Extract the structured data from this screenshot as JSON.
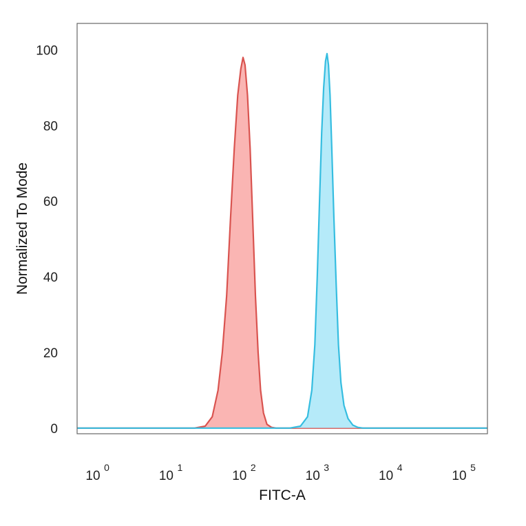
{
  "chart_data": {
    "type": "area",
    "title": "",
    "xlabel": "FITC-A",
    "ylabel": "Normalized To Mode",
    "xscale": "log",
    "xlim": [
      0.5,
      200000
    ],
    "ylim": [
      -1.5,
      107
    ],
    "grid": false,
    "legend": "none",
    "x_ticks": [
      {
        "base": "10",
        "exp": "0",
        "value": 1
      },
      {
        "base": "10",
        "exp": "1",
        "value": 10
      },
      {
        "base": "10",
        "exp": "2",
        "value": 100
      },
      {
        "base": "10",
        "exp": "3",
        "value": 1000
      },
      {
        "base": "10",
        "exp": "4",
        "value": 10000
      },
      {
        "base": "10",
        "exp": "5",
        "value": 100000
      }
    ],
    "y_ticks": [
      {
        "label": "0",
        "value": 0
      },
      {
        "label": "20",
        "value": 20
      },
      {
        "label": "40",
        "value": 40
      },
      {
        "label": "60",
        "value": 60
      },
      {
        "label": "80",
        "value": 80
      },
      {
        "label": "100",
        "value": 100
      }
    ],
    "series": [
      {
        "color": "#d9534f",
        "fill": "#f9a8a6",
        "points": [
          [
            0.5,
            0
          ],
          [
            20,
            0
          ],
          [
            28,
            0.5
          ],
          [
            35,
            3
          ],
          [
            42,
            10
          ],
          [
            48,
            20
          ],
          [
            55,
            35
          ],
          [
            62,
            55
          ],
          [
            70,
            74
          ],
          [
            78,
            88
          ],
          [
            86,
            95
          ],
          [
            92,
            98
          ],
          [
            98,
            96
          ],
          [
            106,
            88
          ],
          [
            115,
            74
          ],
          [
            125,
            55
          ],
          [
            136,
            35
          ],
          [
            148,
            20
          ],
          [
            160,
            10
          ],
          [
            175,
            4
          ],
          [
            195,
            1
          ],
          [
            225,
            0.2
          ],
          [
            260,
            0
          ],
          [
            400,
            0
          ],
          [
            2000,
            0
          ],
          [
            200000,
            0
          ]
        ]
      },
      {
        "color": "#35bde0",
        "fill": "#a8e6f8",
        "points": [
          [
            0.5,
            0
          ],
          [
            400,
            0
          ],
          [
            560,
            0.5
          ],
          [
            700,
            3
          ],
          [
            800,
            10
          ],
          [
            880,
            22
          ],
          [
            950,
            40
          ],
          [
            1020,
            60
          ],
          [
            1090,
            78
          ],
          [
            1160,
            90
          ],
          [
            1230,
            97
          ],
          [
            1290,
            99
          ],
          [
            1350,
            96
          ],
          [
            1420,
            88
          ],
          [
            1500,
            74
          ],
          [
            1600,
            56
          ],
          [
            1720,
            38
          ],
          [
            1850,
            22
          ],
          [
            2000,
            12
          ],
          [
            2200,
            6
          ],
          [
            2500,
            2.5
          ],
          [
            2900,
            0.8
          ],
          [
            3400,
            0.2
          ],
          [
            4000,
            0
          ],
          [
            200000,
            0
          ]
        ]
      }
    ]
  }
}
